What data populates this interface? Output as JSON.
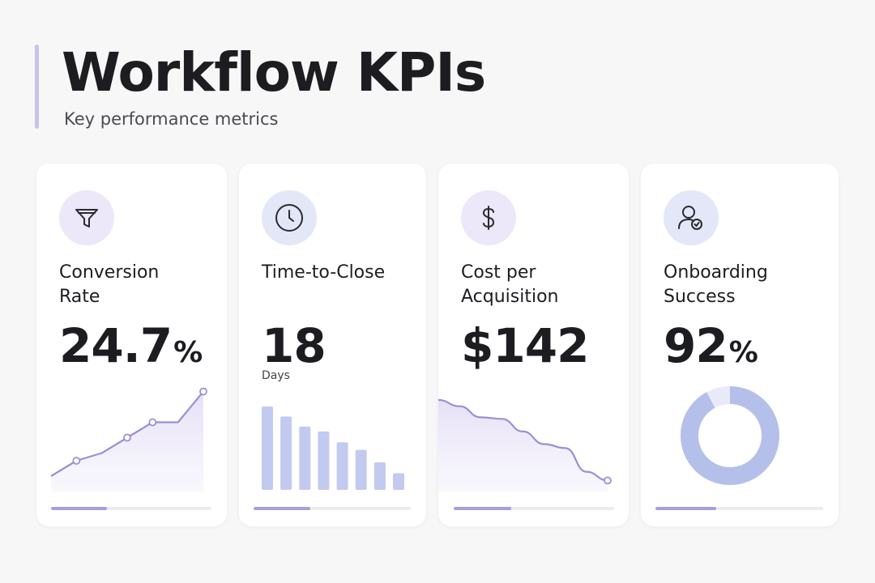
{
  "header": {
    "title": "Workflow KPIs",
    "subtitle": "Key performance metrics"
  },
  "colors": {
    "accent": "#9a8fd6",
    "bar": "#c3caf0",
    "icon_bg_lavender": "#ece7f9",
    "icon_bg_blue": "#e3e7f8",
    "donut": "#b4c0ea",
    "donut_track": "#e8ebf7"
  },
  "cards": [
    {
      "icon": "funnel-icon",
      "label_line1": "Conversion",
      "label_line2": "Rate",
      "value": "24.7",
      "unit": "%",
      "sub": "",
      "progress": 0.35
    },
    {
      "icon": "clock-icon",
      "label_line1": "Time-to-Close",
      "label_line2": "",
      "value": "18",
      "unit": "",
      "sub": "Days",
      "progress": 0.36
    },
    {
      "icon": "dollar-icon",
      "label_line1": "Cost per",
      "label_line2": "Acquisition",
      "value": "$142",
      "unit": "",
      "sub": "",
      "progress": 0.36
    },
    {
      "icon": "user-check-icon",
      "label_line1": "Onboarding",
      "label_line2": "Success",
      "value": "92",
      "unit": "%",
      "sub": "",
      "progress": 0.36
    }
  ],
  "chart_data": [
    {
      "type": "line",
      "title": "",
      "series": [
        {
          "values": [
            2,
            4,
            5,
            7,
            9,
            9,
            13
          ]
        }
      ],
      "ylim": [
        0,
        14
      ],
      "markers_at": [
        1,
        3,
        4,
        6
      ],
      "fill": true
    },
    {
      "type": "bar",
      "title": "",
      "values": [
        100,
        88,
        76,
        70,
        57,
        48,
        33,
        20
      ],
      "ylim": [
        0,
        100
      ]
    },
    {
      "type": "line",
      "title": "",
      "series": [
        {
          "values": [
            11.6,
            10.8,
            9.4,
            9.2,
            7.6,
            6.0,
            5.5,
            2.5,
            1.4
          ]
        }
      ],
      "ylim": [
        0,
        12
      ],
      "markers_at": [
        8
      ],
      "fill": true
    },
    {
      "type": "pie",
      "title": "",
      "values": [
        92,
        8
      ],
      "donut": true
    }
  ]
}
